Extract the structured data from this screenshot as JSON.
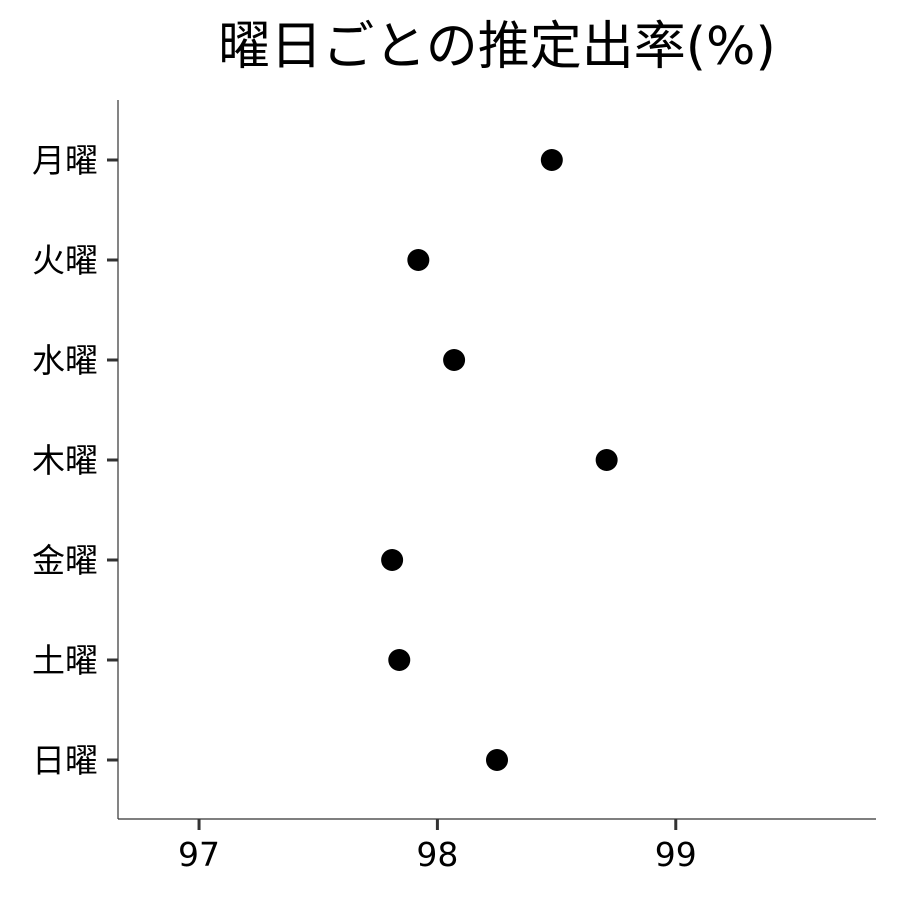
{
  "chart_data": {
    "type": "scatter",
    "title": "曜日ごとの推定出率(%)",
    "xlabel": "",
    "ylabel": "",
    "categories": [
      "月曜",
      "火曜",
      "水曜",
      "木曜",
      "金曜",
      "土曜",
      "日曜"
    ],
    "series": [
      {
        "values": [
          98.48,
          97.92,
          98.07,
          98.71,
          97.81,
          97.84,
          98.25
        ]
      }
    ],
    "xlim": [
      96.66,
      99.84
    ],
    "xticks": [
      97,
      98,
      99
    ],
    "xtick_labels": [
      "97",
      "98",
      "99"
    ],
    "grid": false,
    "legend": "none",
    "point_color": "#000000"
  }
}
